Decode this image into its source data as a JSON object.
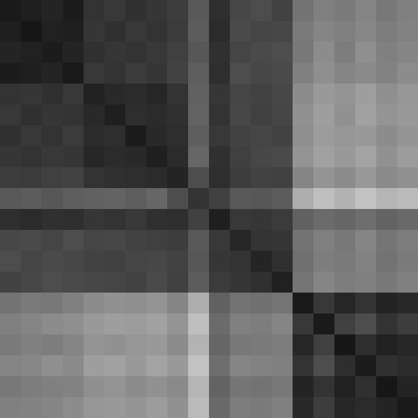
{
  "chart_data": {
    "type": "heatmap",
    "tick_labels": false,
    "color_range": [
      0,
      100
    ],
    "cells": [
      [
        10,
        12,
        14,
        11,
        20,
        22,
        19,
        21,
        24,
        35,
        18,
        28,
        30,
        26,
        45,
        50,
        48,
        52,
        47,
        50
      ],
      [
        12,
        9,
        13,
        12,
        21,
        19,
        22,
        20,
        23,
        36,
        17,
        29,
        27,
        28,
        48,
        52,
        50,
        53,
        49,
        51
      ],
      [
        14,
        13,
        11,
        14,
        19,
        21,
        20,
        22,
        25,
        34,
        19,
        27,
        29,
        30,
        47,
        55,
        49,
        56,
        50,
        52
      ],
      [
        11,
        12,
        14,
        10,
        22,
        20,
        23,
        21,
        26,
        37,
        18,
        30,
        28,
        29,
        50,
        56,
        52,
        54,
        51,
        55
      ],
      [
        20,
        21,
        19,
        22,
        13,
        16,
        17,
        15,
        20,
        38,
        21,
        27,
        26,
        28,
        55,
        60,
        58,
        62,
        56,
        59
      ],
      [
        22,
        19,
        21,
        20,
        16,
        12,
        18,
        17,
        19,
        39,
        20,
        28,
        25,
        27,
        57,
        62,
        57,
        63,
        58,
        60
      ],
      [
        19,
        22,
        20,
        23,
        17,
        18,
        11,
        16,
        18,
        37,
        22,
        26,
        27,
        26,
        56,
        61,
        59,
        60,
        55,
        58
      ],
      [
        21,
        20,
        22,
        21,
        15,
        17,
        16,
        12,
        17,
        40,
        19,
        25,
        28,
        29,
        58,
        63,
        60,
        64,
        57,
        61
      ],
      [
        24,
        23,
        25,
        26,
        20,
        19,
        18,
        17,
        14,
        30,
        18,
        24,
        26,
        25,
        52,
        58,
        55,
        60,
        54,
        57
      ],
      [
        35,
        36,
        34,
        37,
        38,
        39,
        37,
        40,
        30,
        20,
        25,
        35,
        34,
        36,
        68,
        75,
        70,
        76,
        71,
        73
      ],
      [
        18,
        17,
        19,
        18,
        21,
        20,
        22,
        19,
        18,
        25,
        12,
        22,
        21,
        23,
        38,
        42,
        40,
        43,
        39,
        41
      ],
      [
        28,
        29,
        27,
        30,
        27,
        28,
        26,
        25,
        24,
        35,
        22,
        15,
        20,
        21,
        45,
        50,
        47,
        52,
        46,
        49
      ],
      [
        30,
        27,
        29,
        28,
        26,
        25,
        27,
        28,
        26,
        34,
        21,
        20,
        14,
        19,
        44,
        49,
        48,
        51,
        45,
        48
      ],
      [
        26,
        28,
        30,
        29,
        28,
        27,
        26,
        29,
        25,
        36,
        23,
        21,
        19,
        13,
        46,
        52,
        49,
        50,
        47,
        50
      ],
      [
        45,
        48,
        47,
        50,
        55,
        57,
        56,
        58,
        52,
        68,
        38,
        45,
        44,
        46,
        10,
        22,
        15,
        20,
        14,
        16
      ],
      [
        50,
        52,
        55,
        56,
        60,
        62,
        61,
        63,
        58,
        75,
        42,
        50,
        49,
        52,
        22,
        10,
        25,
        30,
        20,
        24
      ],
      [
        48,
        50,
        49,
        52,
        58,
        57,
        59,
        60,
        55,
        70,
        40,
        47,
        48,
        49,
        15,
        25,
        9,
        18,
        13,
        15
      ],
      [
        52,
        53,
        56,
        54,
        62,
        63,
        60,
        64,
        60,
        76,
        43,
        52,
        51,
        50,
        20,
        30,
        18,
        11,
        19,
        17
      ],
      [
        47,
        49,
        50,
        51,
        56,
        58,
        55,
        57,
        54,
        71,
        39,
        46,
        45,
        47,
        14,
        20,
        13,
        19,
        9,
        14
      ],
      [
        50,
        51,
        52,
        55,
        59,
        60,
        58,
        61,
        57,
        73,
        41,
        49,
        48,
        50,
        16,
        24,
        15,
        17,
        14,
        10
      ]
    ]
  }
}
